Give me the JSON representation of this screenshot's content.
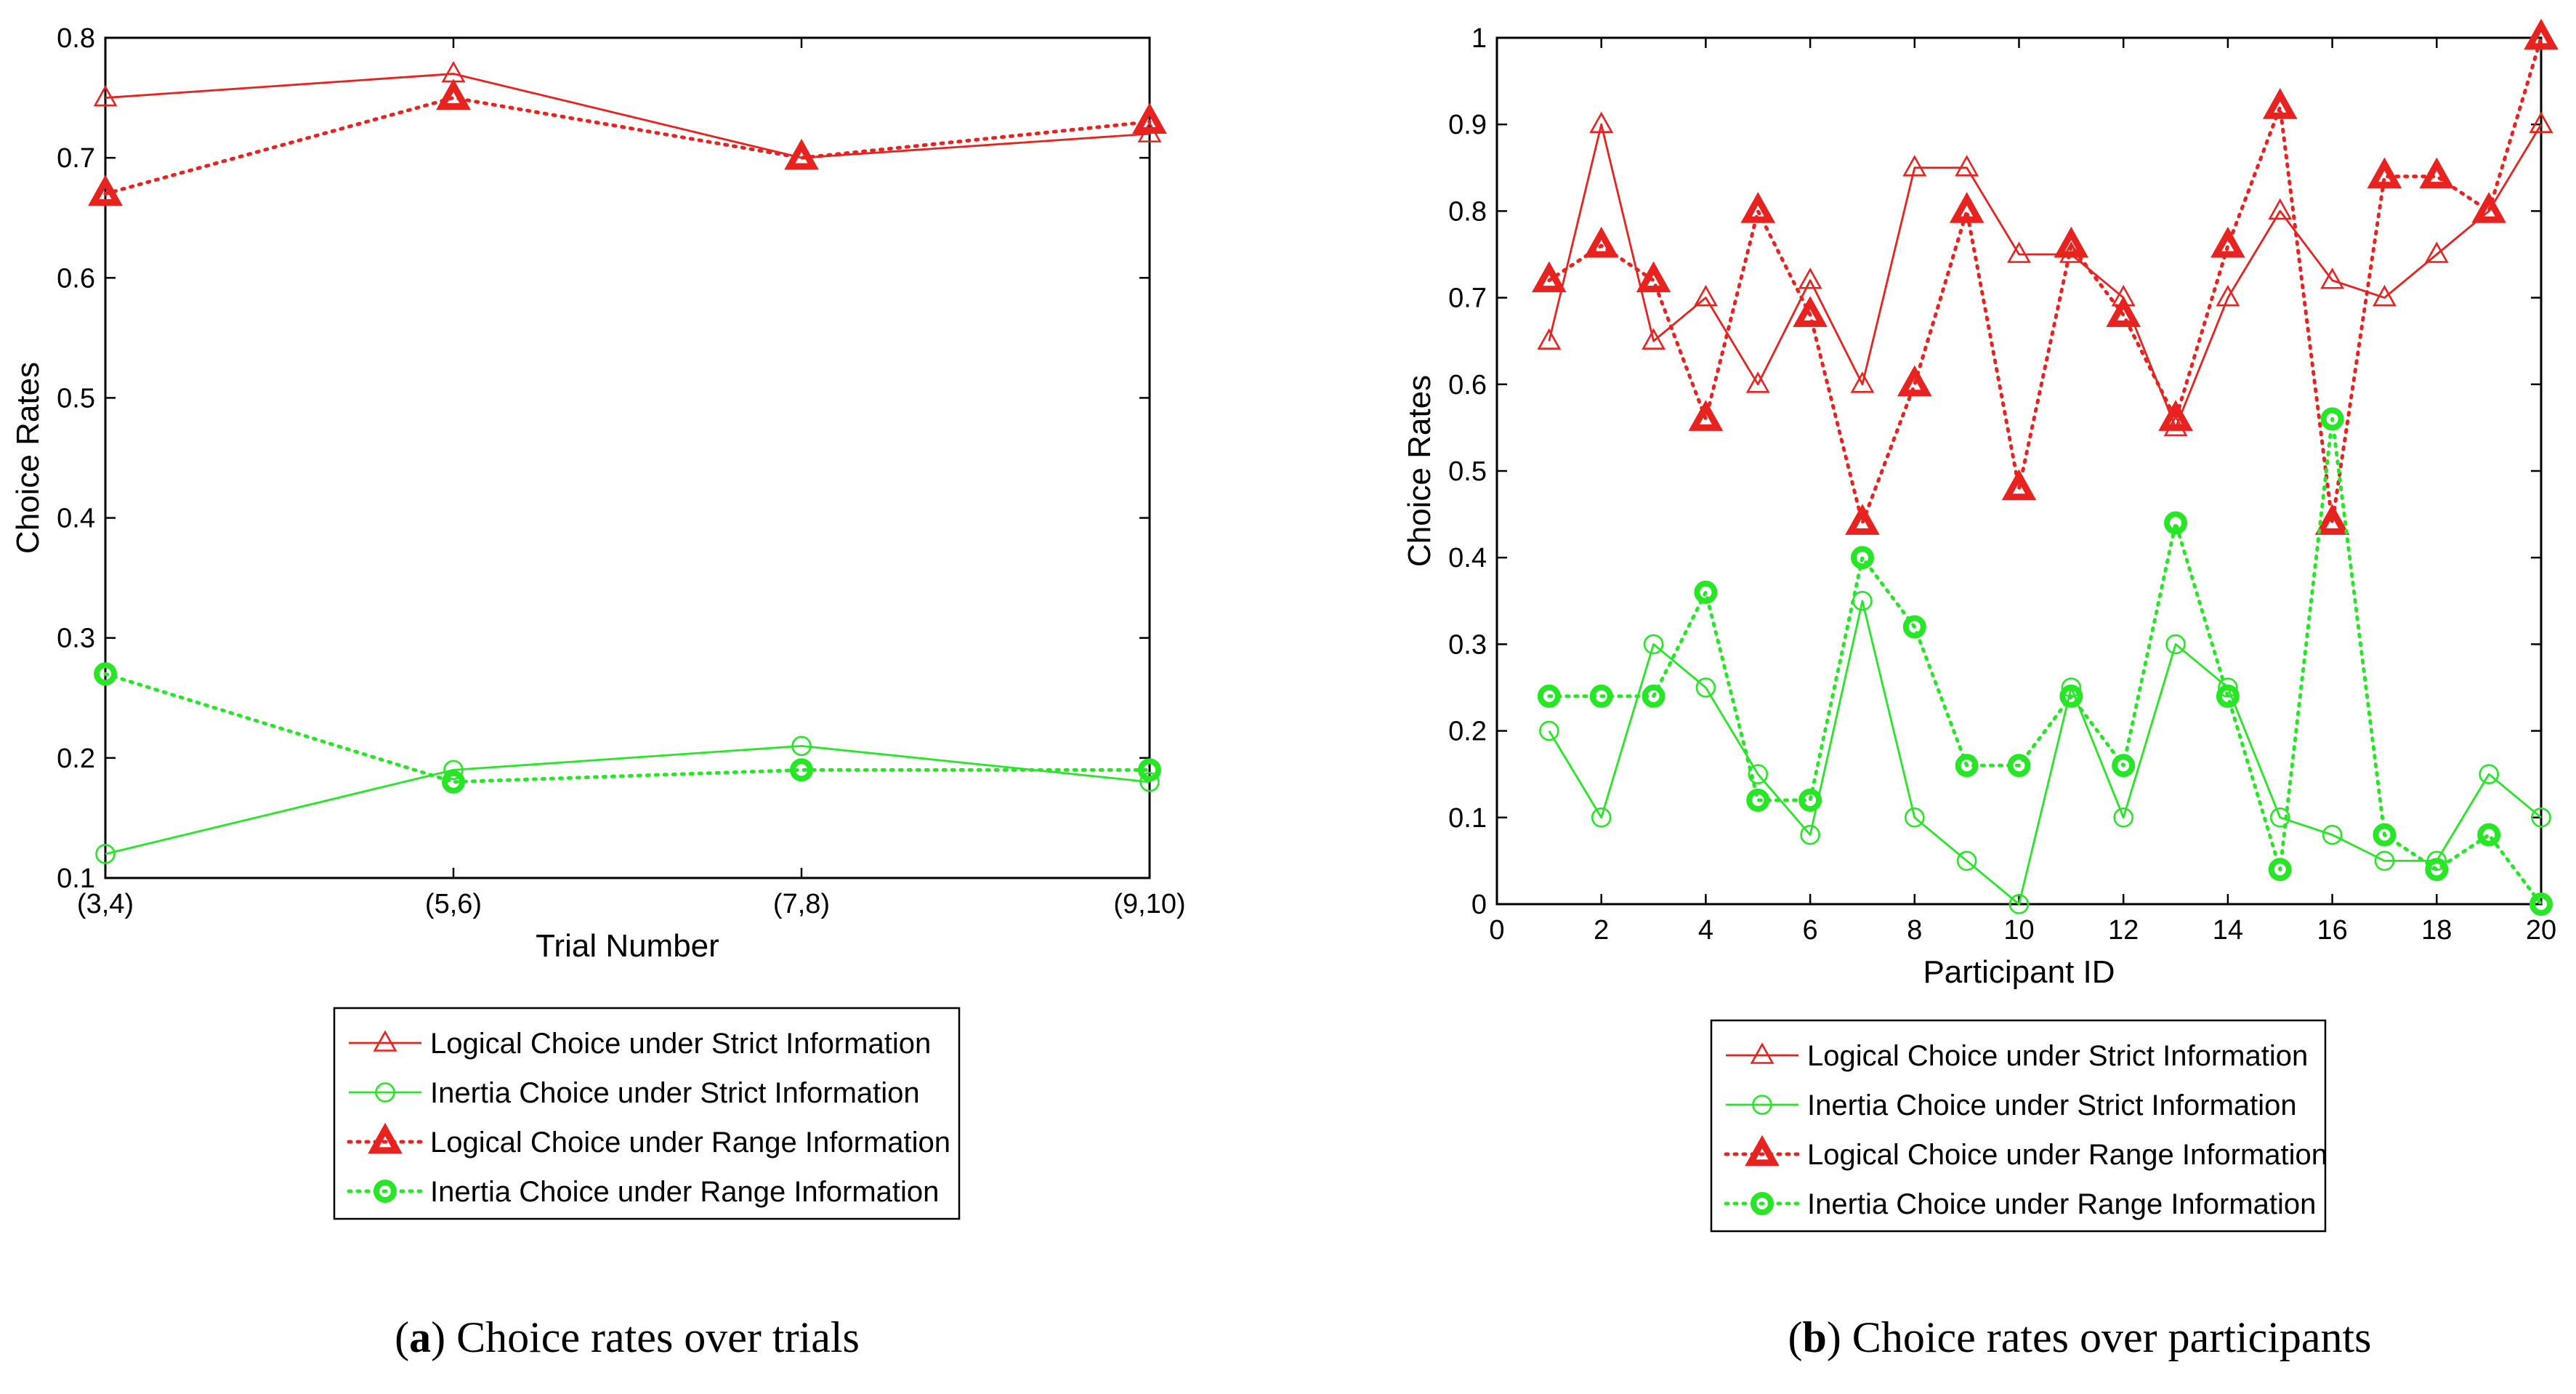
{
  "chart_data": [
    {
      "id": "a",
      "type": "line",
      "xlabel": "Trial Number",
      "ylabel": "Choice Rates",
      "categories": [
        "(3,4)",
        "(5,6)",
        "(7,8)",
        "(9,10)"
      ],
      "ylim": [
        0.1,
        0.8
      ],
      "yticks": [
        "0.1",
        "0.2",
        "0.3",
        "0.4",
        "0.5",
        "0.6",
        "0.7",
        "0.8"
      ],
      "series": [
        {
          "name": "Logical Choice under Strict Information",
          "color": "#e8221e",
          "style": "solid",
          "marker": "triangle-open",
          "values": [
            0.75,
            0.77,
            0.7,
            0.72
          ]
        },
        {
          "name": "Inertia Choice under Strict Information",
          "color": "#26e626",
          "style": "solid",
          "marker": "circle-open",
          "values": [
            0.12,
            0.19,
            0.21,
            0.18
          ]
        },
        {
          "name": "Logical Choice under Range Information",
          "color": "#e8221e",
          "style": "dotted",
          "marker": "triangle-bold",
          "values": [
            0.67,
            0.75,
            0.7,
            0.73
          ]
        },
        {
          "name": "Inertia Choice under Range Information",
          "color": "#26e626",
          "style": "dotted",
          "marker": "circle-bold",
          "values": [
            0.27,
            0.18,
            0.19,
            0.19
          ]
        }
      ],
      "caption_label": "(a)",
      "caption_text": "Choice rates over trials"
    },
    {
      "id": "b",
      "type": "line",
      "xlabel": "Participant ID",
      "ylabel": "Choice Rates",
      "x": [
        1,
        2,
        3,
        4,
        5,
        6,
        7,
        8,
        9,
        10,
        11,
        12,
        13,
        14,
        15,
        16,
        17,
        18,
        19,
        20
      ],
      "xlim": [
        0,
        20
      ],
      "xticks": [
        "0",
        "2",
        "4",
        "6",
        "8",
        "10",
        "12",
        "14",
        "16",
        "18",
        "20"
      ],
      "ylim": [
        0,
        1
      ],
      "yticks": [
        "0",
        "0.1",
        "0.2",
        "0.3",
        "0.4",
        "0.5",
        "0.6",
        "0.7",
        "0.8",
        "0.9",
        "1"
      ],
      "series": [
        {
          "name": "Logical Choice under Strict Information",
          "color": "#e8221e",
          "style": "solid",
          "marker": "triangle-open",
          "values": [
            0.65,
            0.9,
            0.65,
            0.7,
            0.6,
            0.72,
            0.6,
            0.85,
            0.85,
            0.75,
            0.75,
            0.7,
            0.55,
            0.7,
            0.8,
            0.72,
            0.7,
            0.75,
            0.8,
            0.9
          ]
        },
        {
          "name": "Inertia Choice under Strict Information",
          "color": "#26e626",
          "style": "solid",
          "marker": "circle-open",
          "values": [
            0.2,
            0.1,
            0.3,
            0.25,
            0.15,
            0.08,
            0.35,
            0.1,
            0.05,
            0.0,
            0.25,
            0.1,
            0.3,
            0.25,
            0.1,
            0.08,
            0.05,
            0.05,
            0.15,
            0.1
          ]
        },
        {
          "name": "Logical Choice under Range Information",
          "color": "#e8221e",
          "style": "dotted",
          "marker": "triangle-bold",
          "values": [
            0.72,
            0.76,
            0.72,
            0.56,
            0.8,
            0.68,
            0.44,
            0.6,
            0.8,
            0.48,
            0.76,
            0.68,
            0.56,
            0.76,
            0.92,
            0.44,
            0.84,
            0.84,
            0.8,
            1.0
          ]
        },
        {
          "name": "Inertia Choice under Range Information",
          "color": "#26e626",
          "style": "dotted",
          "marker": "circle-bold",
          "values": [
            0.24,
            0.24,
            0.24,
            0.36,
            0.12,
            0.12,
            0.4,
            0.32,
            0.16,
            0.16,
            0.24,
            0.16,
            0.44,
            0.24,
            0.04,
            0.56,
            0.08,
            0.04,
            0.08,
            0.0
          ]
        }
      ],
      "caption_label": "(b)",
      "caption_text": "Choice rates over participants"
    }
  ]
}
